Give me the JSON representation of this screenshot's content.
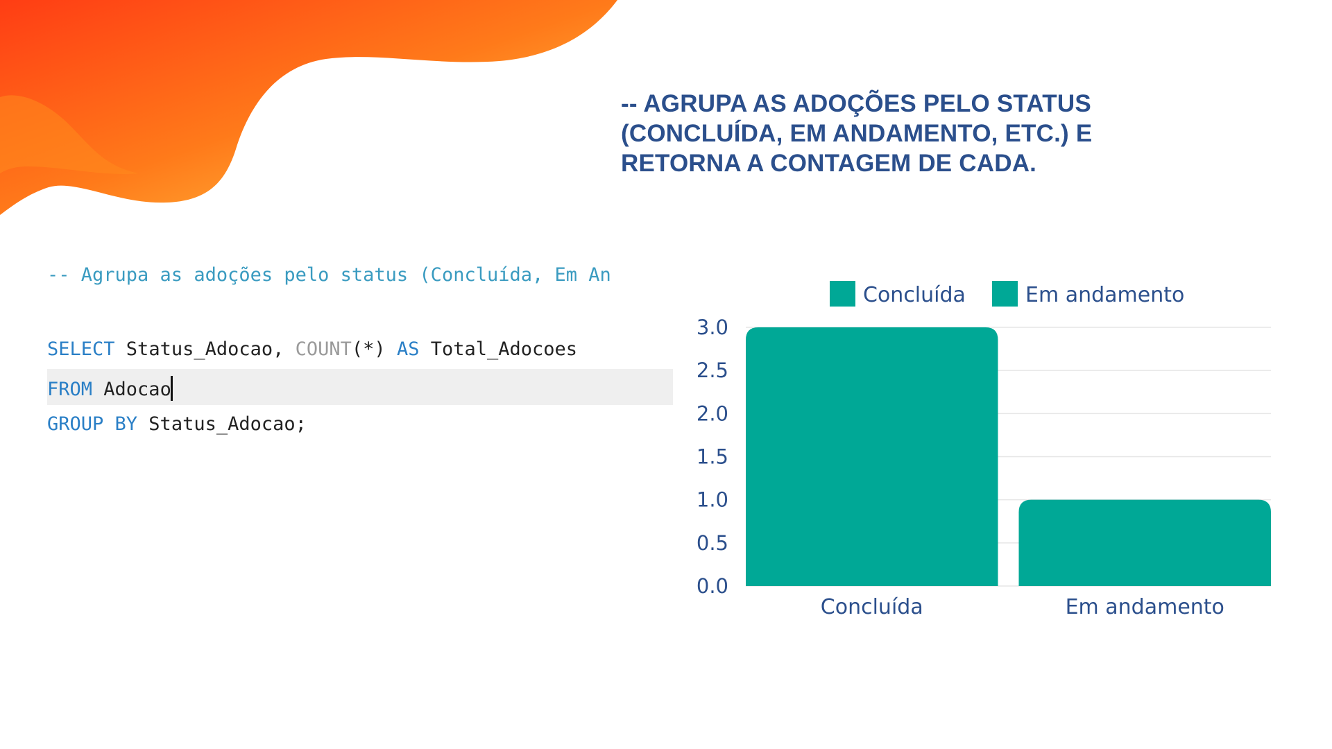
{
  "heading": "-- AGRUPA AS ADOÇÕES PELO STATUS (CONCLUÍDA, EM ANDAMENTO, ETC.) E RETORNA A CONTAGEM DE CADA.",
  "code": {
    "comment": "-- Agrupa as adoções pelo status (Concluída, Em An",
    "select_kw": "SELECT",
    "select_cols": " Status_Adocao, ",
    "count_fn": "COUNT",
    "count_args": "(*) ",
    "as_kw": "AS",
    "alias": " Total_Adocoes",
    "from_kw": "FROM",
    "from_table": " Adocao",
    "group_kw": "GROUP BY",
    "group_col": " Status_Adocao;"
  },
  "colors": {
    "bar": "#00a896",
    "text": "#2b4f8c",
    "grid": "#e6e6e6",
    "blob_start": "#ff3d14",
    "blob_mid": "#ff7a1a",
    "blob_end": "#ffd44a"
  },
  "chart_data": {
    "type": "bar",
    "categories": [
      "Concluída",
      "Em andamento"
    ],
    "values": [
      3,
      1
    ],
    "legend": [
      "Concluída",
      "Em andamento"
    ],
    "legend_position": "top",
    "ylim": [
      0,
      3
    ],
    "yticks": [
      "0.0",
      "0.5",
      "1.0",
      "1.5",
      "2.0",
      "2.5",
      "3.0"
    ],
    "grid": true
  }
}
